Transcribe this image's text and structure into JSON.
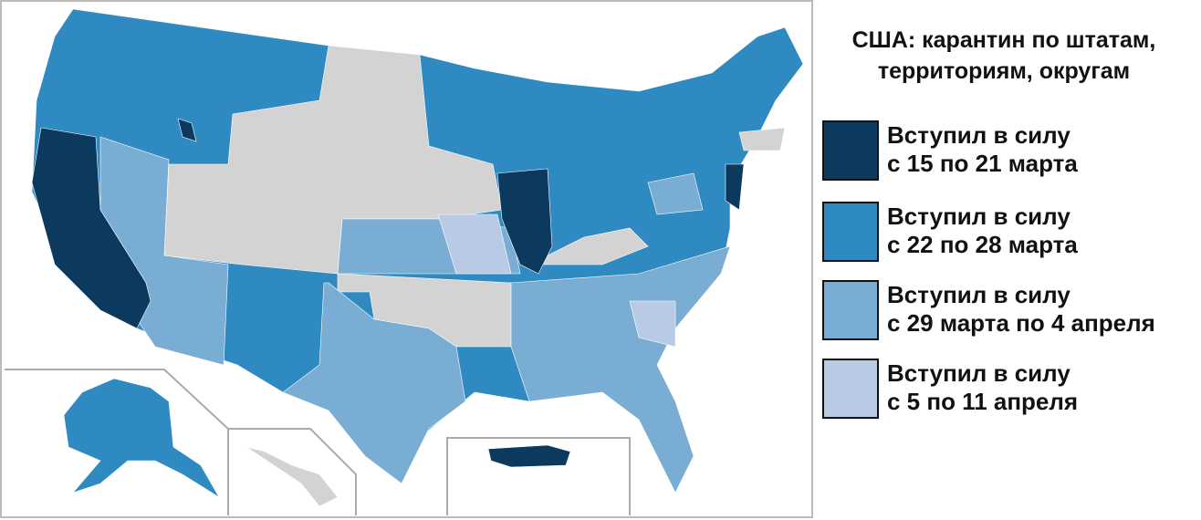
{
  "title": [
    "США: карантин по штатам,",
    "территориям, округам"
  ],
  "legend": [
    {
      "lines": [
        "Вступил в силу",
        "с 15 по 21 марта"
      ],
      "color": "#0c3a5e"
    },
    {
      "lines": [
        "Вступил в силу",
        "с 22 по 28 марта"
      ],
      "color": "#2f8ac1"
    },
    {
      "lines": [
        "Вступил в силу",
        "с 29 марта по 4 апреля"
      ],
      "color": "#7aadd3"
    },
    {
      "lines": [
        "Вступил в силу",
        "с 5 по 11 апреля"
      ],
      "color": "#b9cbe4"
    }
  ]
}
